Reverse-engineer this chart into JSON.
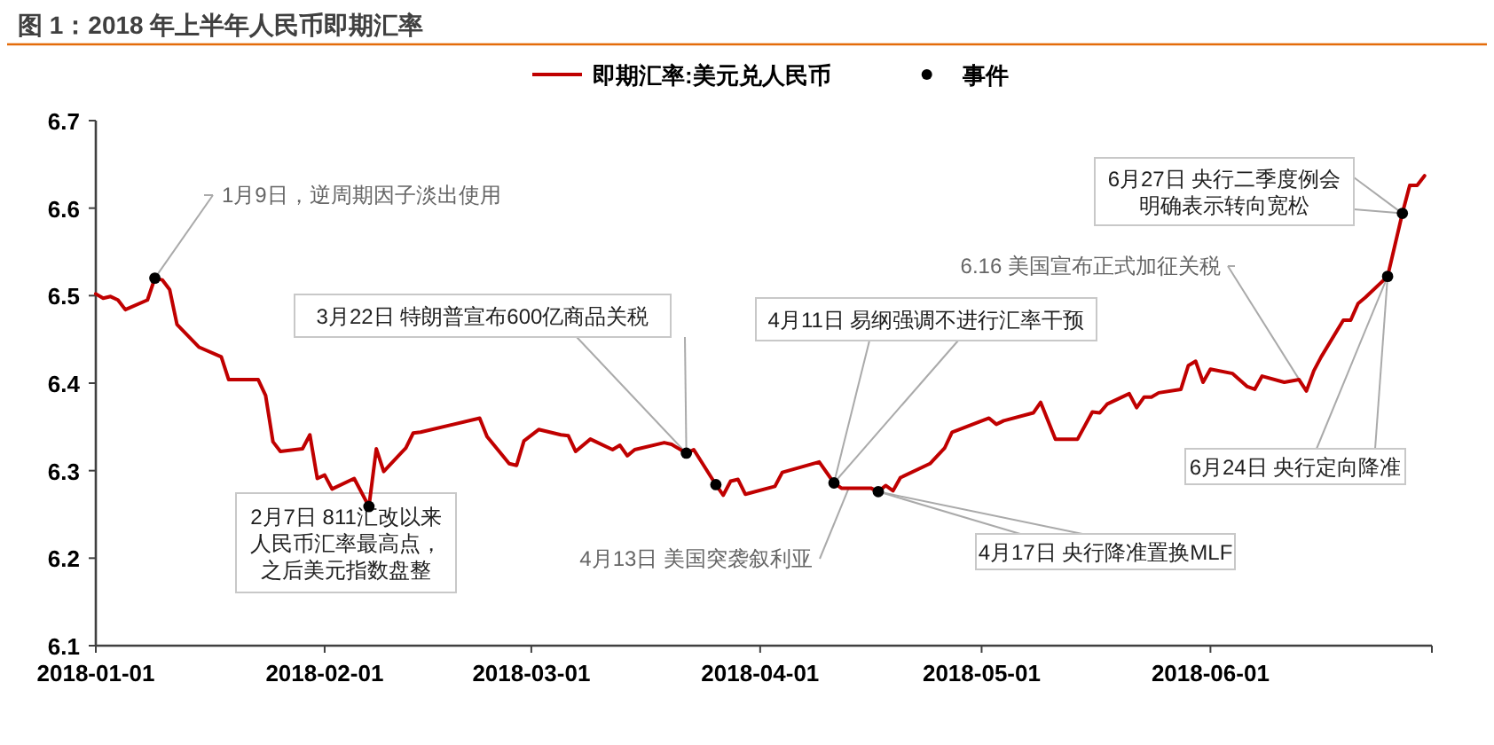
{
  "chart_data": {
    "type": "line",
    "title": "图 1：2018 年上半年人民币即期汇率",
    "series": [
      {
        "name": "即期汇率:美元兑人民币",
        "color": "#c00000",
        "marker": "none",
        "x": [
          "2018-01-01",
          "2018-01-02",
          "2018-01-03",
          "2018-01-04",
          "2018-01-05",
          "2018-01-08",
          "2018-01-09",
          "2018-01-10",
          "2018-01-11",
          "2018-01-12",
          "2018-01-15",
          "2018-01-18",
          "2018-01-19",
          "2018-01-23",
          "2018-01-24",
          "2018-01-25",
          "2018-01-26",
          "2018-01-29",
          "2018-01-30",
          "2018-01-31",
          "2018-02-01",
          "2018-02-02",
          "2018-02-05",
          "2018-02-07",
          "2018-02-08",
          "2018-02-09",
          "2018-02-12",
          "2018-02-13",
          "2018-02-14",
          "2018-02-22",
          "2018-02-23",
          "2018-02-26",
          "2018-02-27",
          "2018-02-28",
          "2018-03-02",
          "2018-03-05",
          "2018-03-06",
          "2018-03-07",
          "2018-03-09",
          "2018-03-12",
          "2018-03-13",
          "2018-03-14",
          "2018-03-15",
          "2018-03-19",
          "2018-03-20",
          "2018-03-22",
          "2018-03-23",
          "2018-03-26",
          "2018-03-27",
          "2018-03-28",
          "2018-03-29",
          "2018-03-30",
          "2018-04-03",
          "2018-04-04",
          "2018-04-09",
          "2018-04-11",
          "2018-04-12",
          "2018-04-16",
          "2018-04-17",
          "2018-04-18",
          "2018-04-19",
          "2018-04-20",
          "2018-04-24",
          "2018-04-26",
          "2018-04-27",
          "2018-05-02",
          "2018-05-03",
          "2018-05-04",
          "2018-05-08",
          "2018-05-09",
          "2018-05-11",
          "2018-05-14",
          "2018-05-16",
          "2018-05-17",
          "2018-05-18",
          "2018-05-21",
          "2018-05-22",
          "2018-05-23",
          "2018-05-24",
          "2018-05-25",
          "2018-05-28",
          "2018-05-29",
          "2018-05-30",
          "2018-05-31",
          "2018-06-01",
          "2018-06-04",
          "2018-06-06",
          "2018-06-07",
          "2018-06-08",
          "2018-06-11",
          "2018-06-13",
          "2018-06-14",
          "2018-06-15",
          "2018-06-16",
          "2018-06-19",
          "2018-06-20",
          "2018-06-21",
          "2018-06-22",
          "2018-06-25",
          "2018-06-27",
          "2018-06-28",
          "2018-06-29",
          "2018-06-30"
        ],
        "values": [
          6.502,
          6.497,
          6.499,
          6.495,
          6.484,
          6.495,
          6.52,
          6.518,
          6.507,
          6.467,
          6.441,
          6.43,
          6.404,
          6.404,
          6.386,
          6.333,
          6.322,
          6.325,
          6.341,
          6.291,
          6.295,
          6.279,
          6.291,
          6.259,
          6.325,
          6.299,
          6.326,
          6.343,
          6.344,
          6.36,
          6.339,
          6.308,
          6.306,
          6.334,
          6.347,
          6.341,
          6.34,
          6.322,
          6.336,
          6.324,
          6.329,
          6.317,
          6.324,
          6.332,
          6.33,
          6.32,
          6.324,
          6.284,
          6.272,
          6.288,
          6.29,
          6.273,
          6.282,
          6.298,
          6.31,
          6.286,
          6.28,
          6.28,
          6.276,
          6.283,
          6.277,
          6.292,
          6.308,
          6.326,
          6.344,
          6.36,
          6.353,
          6.357,
          6.366,
          6.378,
          6.336,
          6.336,
          6.367,
          6.366,
          6.376,
          6.388,
          6.372,
          6.384,
          6.384,
          6.389,
          6.393,
          6.42,
          6.425,
          6.401,
          6.416,
          6.411,
          6.396,
          6.393,
          6.408,
          6.401,
          6.404,
          6.391,
          6.414,
          6.43,
          6.472,
          6.472,
          6.491,
          6.498,
          6.522,
          6.594,
          6.626,
          6.626,
          6.637
        ]
      },
      {
        "name": "事件",
        "color": "#000000",
        "type": "scatter",
        "marker": "circle",
        "x": [
          "2018-01-09",
          "2018-02-07",
          "2018-03-22",
          "2018-03-26",
          "2018-04-11",
          "2018-04-17",
          "2018-06-25",
          "2018-06-27"
        ],
        "values": [
          6.52,
          6.259,
          6.32,
          6.284,
          6.286,
          6.276,
          6.522,
          6.594
        ]
      }
    ],
    "xlim": [
      "2018-01-01",
      "2018-07-01"
    ],
    "xticks": [
      {
        "value": "2018-01-01",
        "label": "2018-01-01"
      },
      {
        "value": "2018-02-01",
        "label": "2018-02-01"
      },
      {
        "value": "2018-03-01",
        "label": "2018-03-01"
      },
      {
        "value": "2018-04-01",
        "label": "2018-04-01"
      },
      {
        "value": "2018-05-01",
        "label": "2018-05-01"
      },
      {
        "value": "2018-06-01",
        "label": "2018-06-01"
      },
      {
        "value": "2018-07-01",
        "label": null
      }
    ],
    "ylim": [
      6.1,
      6.7
    ],
    "yticks": [
      6.1,
      6.2,
      6.3,
      6.4,
      6.5,
      6.6,
      6.7
    ],
    "grid": false,
    "legend": "top",
    "line_style": "solid",
    "annotations": [
      {
        "text": "1月9日，逆周期因子淡出使用",
        "x": "2018-01-09",
        "y": 6.52
      },
      {
        "text": "3月22日 特朗普宣布600亿商品关税",
        "x": "2018-03-22",
        "y": 6.32
      },
      {
        "text": "2月7日 811汇改以来人民币汇率最高点，之后美元指数盘整",
        "x": "2018-02-07",
        "y": 6.259
      },
      {
        "text": "4月13日 美国突袭叙利亚",
        "x": "2018-04-13",
        "y": 6.28
      },
      {
        "text": "4月11日 易纲强调不进行汇率干预",
        "x": "2018-04-11",
        "y": 6.286
      },
      {
        "text": "4月17日 央行降准置换MLF",
        "x": "2018-04-17",
        "y": 6.276
      },
      {
        "text": "6.16 美国宣布正式加征关税",
        "x": "2018-06-14",
        "y": 6.391
      },
      {
        "text": "6月24日 央行定向降准",
        "x": "2018-06-25",
        "y": 6.522
      },
      {
        "text": "6月27日 央行二季度例会明确表示转向宽松",
        "x": "2018-06-27",
        "y": 6.594
      }
    ]
  }
}
